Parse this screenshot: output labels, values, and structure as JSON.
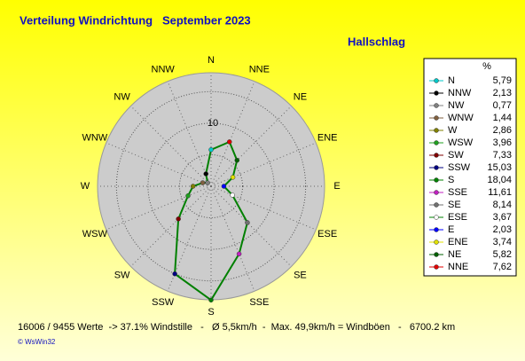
{
  "chart_data": {
    "type": "windrose",
    "title": "Verteilung Windrichtung   September 2023",
    "subtitle": "Hallschlag",
    "legend_header": "%",
    "categories": [
      "N",
      "NNW",
      "NW",
      "WNW",
      "W",
      "WSW",
      "SW",
      "SSW",
      "S",
      "SSE",
      "SE",
      "ESE",
      "E",
      "ENE",
      "NE",
      "NNE"
    ],
    "values": [
      5.79,
      2.13,
      0.77,
      1.44,
      2.86,
      3.96,
      7.33,
      15.03,
      18.04,
      11.61,
      8.14,
      3.67,
      2.03,
      3.74,
      5.82,
      7.62
    ],
    "value_labels": [
      "5,79",
      "2,13",
      "0,77",
      "1,44",
      "2,86",
      "3,96",
      "7,33",
      "15,03",
      "18,04",
      "11,61",
      "8,14",
      "3,67",
      "2,03",
      "3,74",
      "5,82",
      "7,62"
    ],
    "marker_colors": [
      "#00c8c8",
      "#000000",
      "#808080",
      "#806040",
      "#808000",
      "#20a020",
      "#800000",
      "#000080",
      "#008000",
      "#c020c0",
      "#707070",
      "#ffffff",
      "#0000ff",
      "#e0e000",
      "#006000",
      "#e00000"
    ],
    "color": "#008000",
    "rlim": [
      0,
      18
    ],
    "rticks": [
      10
    ],
    "rgrid": [
      5,
      10,
      15
    ],
    "footer": "16006 / 9455 Werte  -> 37.1% Windstille   -   Ø 5,5km/h  -  Max. 49,9km/h = Windböen   -   6700.2 km",
    "credit": "© WsWin32"
  }
}
